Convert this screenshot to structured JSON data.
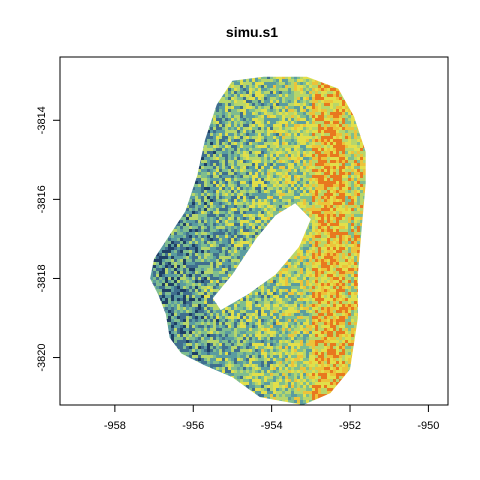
{
  "chart_data": {
    "type": "heatmap",
    "title": "simu.s1",
    "xlabel": "",
    "ylabel": "",
    "xlim": [
      -959.4,
      -949.5
    ],
    "ylim": [
      -3821.2,
      -3812.4
    ],
    "x_ticks": [
      -958,
      -956,
      -954,
      -952,
      -950
    ],
    "y_ticks": [
      -3814,
      -3816,
      -3818,
      -3820
    ],
    "x_tick_labels": [
      "-958",
      "-956",
      "-954",
      "-952",
      "-950"
    ],
    "y_tick_labels": [
      "-3814",
      "-3816",
      "-3818",
      "-3820"
    ],
    "grid": false,
    "legend": "none",
    "colormap": [
      "#1f3f66",
      "#3f6f8f",
      "#5a9ca0",
      "#7fbd8e",
      "#b7d66a",
      "#e2df4a",
      "#ecc33a",
      "#e8781f"
    ],
    "outer_boundary": [
      [
        -954.2,
        -3812.9
      ],
      [
        -953.1,
        -3812.9
      ],
      [
        -952.3,
        -3813.2
      ],
      [
        -951.9,
        -3813.9
      ],
      [
        -951.6,
        -3814.8
      ],
      [
        -951.6,
        -3815.6
      ],
      [
        -951.7,
        -3816.7
      ],
      [
        -951.8,
        -3817.9
      ],
      [
        -951.8,
        -3819.0
      ],
      [
        -952.0,
        -3820.3
      ],
      [
        -952.5,
        -3820.9
      ],
      [
        -953.2,
        -3821.2
      ],
      [
        -954.3,
        -3821.0
      ],
      [
        -955.0,
        -3820.5
      ],
      [
        -955.7,
        -3820.2
      ],
      [
        -956.3,
        -3819.9
      ],
      [
        -956.6,
        -3819.5
      ],
      [
        -956.7,
        -3818.9
      ],
      [
        -956.9,
        -3818.4
      ],
      [
        -957.1,
        -3818.0
      ],
      [
        -957.0,
        -3817.5
      ],
      [
        -956.6,
        -3816.9
      ],
      [
        -956.2,
        -3816.3
      ],
      [
        -955.9,
        -3815.4
      ],
      [
        -955.7,
        -3814.5
      ],
      [
        -955.4,
        -3813.6
      ],
      [
        -955.0,
        -3813.0
      ]
    ],
    "hole_boundary": [
      [
        -953.4,
        -3816.1
      ],
      [
        -953.0,
        -3816.5
      ],
      [
        -953.3,
        -3817.2
      ],
      [
        -953.9,
        -3817.9
      ],
      [
        -954.6,
        -3818.4
      ],
      [
        -955.3,
        -3818.8
      ],
      [
        -955.5,
        -3818.5
      ],
      [
        -955.0,
        -3817.9
      ],
      [
        -954.4,
        -3817.0
      ],
      [
        -953.9,
        -3816.4
      ]
    ],
    "intensity_gradient": {
      "low_side": "left",
      "high_side": "right",
      "high_band_x": [
        -953.0,
        -952.2
      ]
    }
  }
}
